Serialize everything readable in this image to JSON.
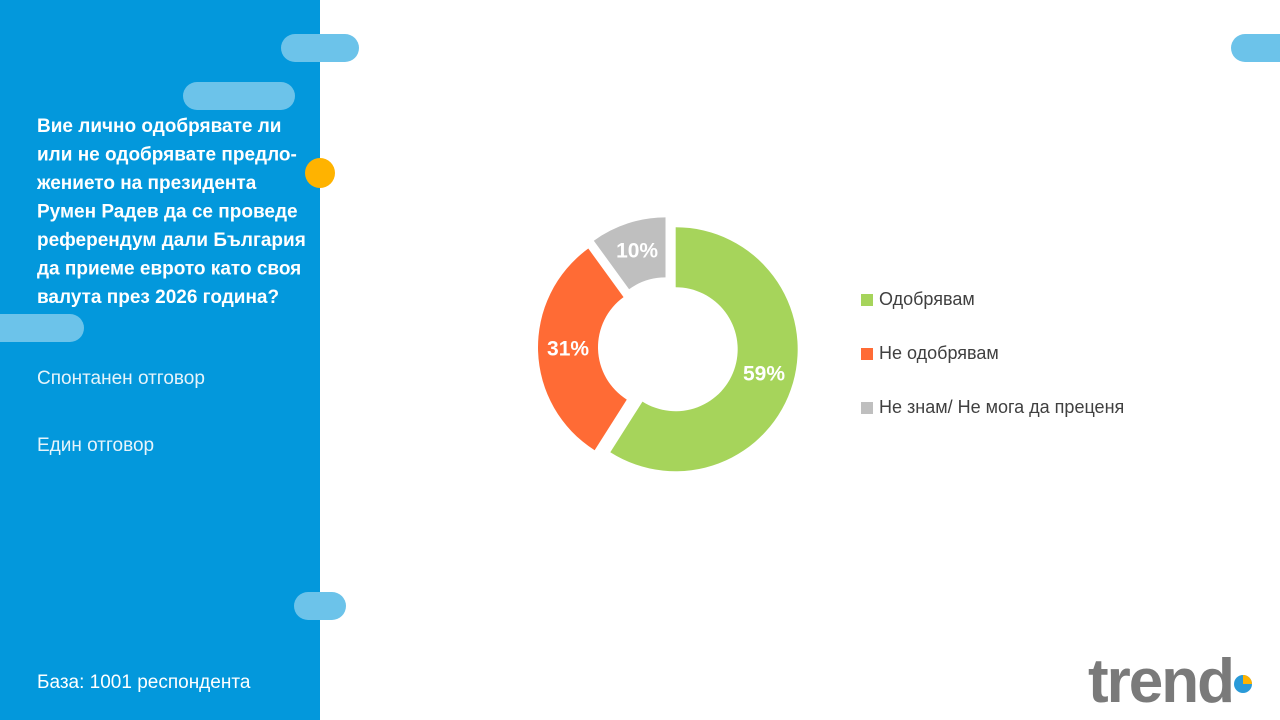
{
  "sidebar": {
    "question_lines": [
      "Вие лично одобрявате ли",
      "или не одобрявате предло-",
      "жението на президента",
      "Румен Радев да се проведе",
      "референдум дали България",
      "да приеме еврото като своя",
      "валута през 2026 година?"
    ],
    "notes": [
      "Спонтанен отговор",
      "Един отговор"
    ],
    "base": "База:  1001 респондента"
  },
  "logo": "trend",
  "chart_data": {
    "type": "pie",
    "donut": true,
    "categories": [
      "Одобрявам",
      "Не одобрявам",
      "Не знам/ Не мога да преценя"
    ],
    "values": [
      59,
      31,
      10
    ],
    "value_labels": [
      "59%",
      "31%",
      "10%"
    ],
    "colors": [
      "#a6d45b",
      "#ff6b35",
      "#bfbfbf"
    ],
    "legend": "right"
  }
}
